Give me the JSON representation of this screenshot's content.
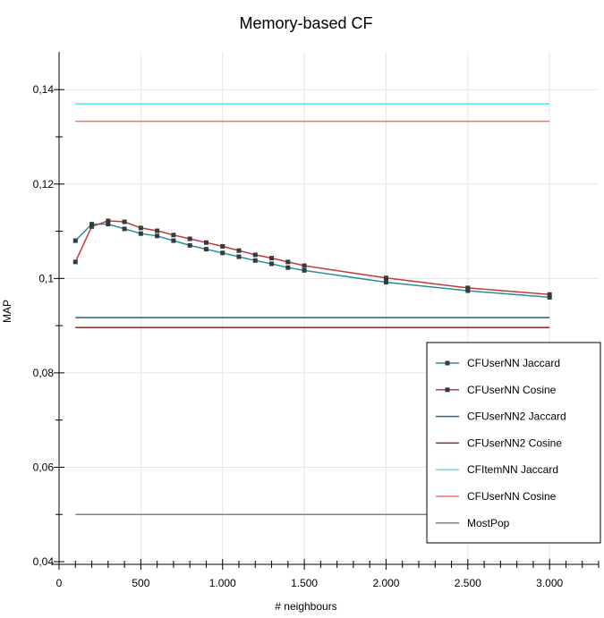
{
  "chart_data": {
    "type": "line",
    "title": "Memory-based CF",
    "xlabel": "# neighbours",
    "ylabel": "MAP",
    "xlim": [
      0,
      3300
    ],
    "ylim": [
      0.04,
      0.148
    ],
    "x_ticks": [
      0,
      500,
      1000,
      1500,
      2000,
      2500,
      3000
    ],
    "x_tick_labels": [
      "0",
      "500",
      "1.000",
      "1.500",
      "2.000",
      "2.500",
      "3.000"
    ],
    "y_ticks": [
      0.04,
      0.06,
      0.08,
      0.1,
      0.12,
      0.14
    ],
    "y_tick_labels": [
      "0,04",
      "0,06",
      "0,08",
      "0,1",
      "0,12",
      "0,14"
    ],
    "grid": true,
    "legend_position": "bottom-right",
    "series": [
      {
        "name": "CFUserNN Jaccard",
        "kind": "line-markers",
        "color": "#2a8e98",
        "x": [
          100,
          200,
          300,
          400,
          500,
          600,
          700,
          800,
          900,
          1000,
          1100,
          1200,
          1300,
          1400,
          1500,
          2000,
          2500,
          3000
        ],
        "y": [
          0.108,
          0.1115,
          0.1115,
          0.1105,
          0.1095,
          0.109,
          0.108,
          0.107,
          0.1062,
          0.1054,
          0.1046,
          0.1038,
          0.1031,
          0.1023,
          0.1017,
          0.0992,
          0.0974,
          0.096
        ]
      },
      {
        "name": "CFUserNN Cosine",
        "kind": "line-markers",
        "color": "#c0393b",
        "x": [
          100,
          200,
          300,
          400,
          500,
          600,
          700,
          800,
          900,
          1000,
          1100,
          1200,
          1300,
          1400,
          1500,
          2000,
          2500,
          3000
        ],
        "y": [
          0.1035,
          0.111,
          0.1122,
          0.112,
          0.1107,
          0.1101,
          0.1092,
          0.1084,
          0.1076,
          0.1068,
          0.1059,
          0.105,
          0.1043,
          0.1035,
          0.1027,
          0.1001,
          0.098,
          0.0966
        ]
      },
      {
        "name": "CFUserNN2 Jaccard",
        "kind": "line",
        "color": "#1f5f8b",
        "x": [
          100,
          3000
        ],
        "y": [
          0.0917,
          0.0917
        ]
      },
      {
        "name": "CFUserNN2 Cosine",
        "kind": "line",
        "color": "#8b2a2a",
        "x": [
          100,
          3000
        ],
        "y": [
          0.0896,
          0.0896
        ]
      },
      {
        "name": "CFItemNN Jaccard",
        "kind": "line",
        "color": "#4ee8f0",
        "x": [
          100,
          3000
        ],
        "y": [
          0.137,
          0.137
        ]
      },
      {
        "name": "CFUserNN Cosine",
        "kind": "line",
        "color": "#f07070",
        "x": [
          100,
          3000
        ],
        "y": [
          0.1333,
          0.1333
        ]
      },
      {
        "name": "MostPop",
        "kind": "line",
        "color": "#808080",
        "x": [
          100,
          3000
        ],
        "y": [
          0.05,
          0.05
        ]
      }
    ]
  }
}
